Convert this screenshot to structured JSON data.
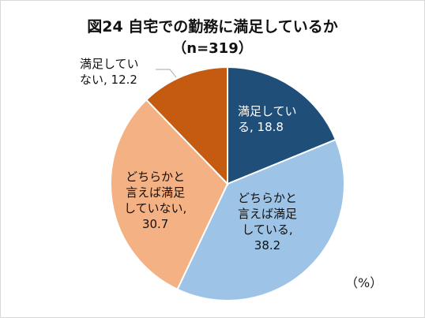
{
  "chart_data": {
    "type": "pie",
    "title": "図24 自宅での勤務に満足しているか",
    "subtitle": "（n=319）",
    "unit_label": "（%）",
    "start_angle_deg": 0,
    "direction": "clockwise",
    "slices": [
      {
        "value": 18.8,
        "label_lines": [
          "満足してい",
          "る, 18.8"
        ],
        "color": "#1f4e79",
        "text_color": "#ffffff"
      },
      {
        "value": 38.2,
        "label_lines": [
          "どちらかと",
          "言えば満足",
          "している,",
          "38.2"
        ],
        "color": "#9dc3e6",
        "text_color": "#111111"
      },
      {
        "value": 30.7,
        "label_lines": [
          "どちらかと",
          "言えば満足",
          "していない,",
          "30.7"
        ],
        "color": "#f4b183",
        "text_color": "#111111"
      },
      {
        "value": 12.2,
        "label_lines": [
          "満足してい",
          "ない, 12.2"
        ],
        "color": "#c55a11",
        "text_color": "#111111"
      }
    ]
  }
}
